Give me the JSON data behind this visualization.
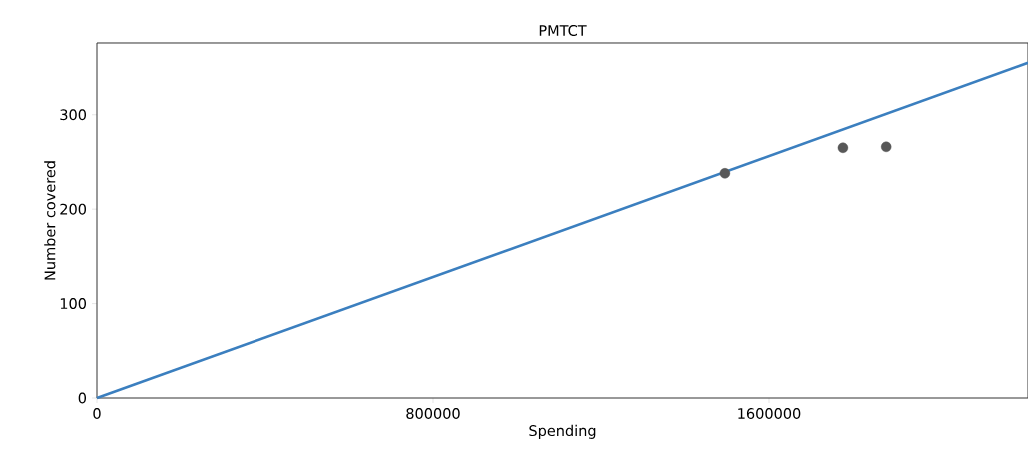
{
  "chart_data": {
    "type": "scatter",
    "title": "PMTCT",
    "xlabel": "Spending",
    "ylabel": "Number covered",
    "xlim": [
      0,
      2216667
    ],
    "ylim": [
      0,
      376
    ],
    "xticks": [
      0,
      800000,
      1600000
    ],
    "yticks": [
      0,
      100,
      200,
      300
    ],
    "grid": false,
    "series": [
      {
        "type": "line",
        "marker": "none",
        "color": "#3b7fbf",
        "x": [
          0,
          2216667
        ],
        "values": [
          0,
          355
        ]
      },
      {
        "marker": "circle",
        "color": "#585858",
        "x": [
          1495000,
          1776000,
          1879000
        ],
        "values": [
          238,
          265,
          266
        ]
      }
    ]
  }
}
